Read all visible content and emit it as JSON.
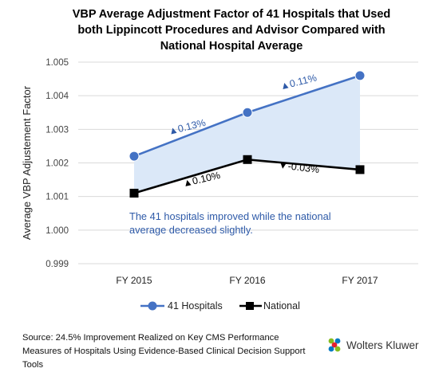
{
  "chart_data": {
    "type": "line",
    "title_lines": [
      "VBP Average Adjustment Factor of 41 Hospitals that Used",
      "both Lippincott Procedures and Advisor Compared with",
      "National Hospital Average"
    ],
    "ylabel": "Average VBP Adjustement Factor",
    "xlabel": "",
    "categories": [
      "FY 2015",
      "FY 2016",
      "FY 2017"
    ],
    "ylim": [
      0.999,
      1.005
    ],
    "yticks": [
      "0.999",
      "1.000",
      "1.001",
      "1.002",
      "1.003",
      "1.004",
      "1.005"
    ],
    "grid": true,
    "legend_position": "bottom",
    "series": [
      {
        "name": "41 Hospitals",
        "values": [
          1.0022,
          1.0035,
          1.0046
        ],
        "color": "#4472C4",
        "marker": "circle"
      },
      {
        "name": "National",
        "values": [
          1.0011,
          1.0021,
          1.0018
        ],
        "color": "#000000",
        "marker": "square"
      }
    ],
    "shaded_area_color": "#dbe8f8",
    "annotations": [
      {
        "text": "0.13%",
        "glyph": "▲",
        "color": "#2e5aa8"
      },
      {
        "text": "0.11%",
        "glyph": "▲",
        "color": "#2e5aa8"
      },
      {
        "text": "0.10%",
        "glyph": "▲",
        "color": "#000000"
      },
      {
        "text": "-0.03%",
        "glyph": "▼",
        "color": "#000000"
      }
    ],
    "note_lines": [
      "The 41 hospitals improved while the national",
      "average decreased slightly."
    ],
    "note_color": "#2e5aa8"
  },
  "footer": {
    "source": "Source: 24.5% Improvement Realized on Key CMS Performance Measures of Hospitals Using Evidence-Based Clinical Decision Support Tools",
    "brand": "Wolters Kluwer"
  },
  "icons": {
    "brand_logo": "wolters-kluwer-logo-icon"
  }
}
